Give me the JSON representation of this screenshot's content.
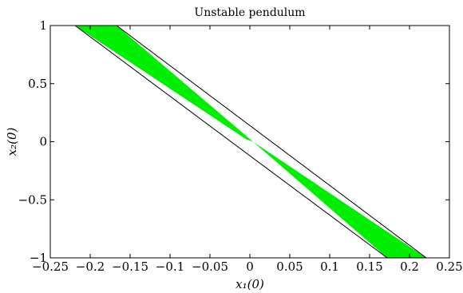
{
  "chart_data": {
    "type": "area",
    "title": "Unstable pendulum",
    "xlabel": "x₁(0)",
    "ylabel": "x₂(0)",
    "xlim": [
      -0.25,
      0.25
    ],
    "ylim": [
      -1,
      1
    ],
    "xticks": [
      -0.25,
      -0.2,
      -0.15,
      -0.1,
      -0.05,
      0,
      0.05,
      0.1,
      0.15,
      0.2,
      0.25
    ],
    "xtick_labels": [
      "−0.25",
      "−0.2",
      "−0.15",
      "−0.1",
      "−0.05",
      "0",
      "0.05",
      "0.1",
      "0.15",
      "0.2",
      "0.25"
    ],
    "yticks": [
      -1,
      -0.5,
      0,
      0.5,
      1
    ],
    "ytick_labels": [
      "−1",
      "−0.5",
      "0",
      "0.5",
      "1"
    ],
    "grid": false,
    "fill_color": "#00ee00",
    "edge_color": "#000000",
    "regions": [
      {
        "polygon": [
          [
            -0.219,
            1
          ],
          [
            -0.167,
            1
          ],
          [
            0.004,
            0
          ],
          [
            -0.005,
            0.022
          ],
          [
            -0.219,
            1
          ]
        ]
      },
      {
        "polygon": [
          [
            0.004,
            0
          ],
          [
            0.221,
            -1
          ],
          [
            0.172,
            -1
          ],
          [
            0.004,
            0
          ]
        ]
      }
    ],
    "boundary_lines": [
      {
        "points": [
          [
            -0.219,
            1
          ],
          [
            0.172,
            -1
          ]
        ]
      },
      {
        "points": [
          [
            -0.167,
            1
          ],
          [
            0.221,
            -1
          ]
        ]
      }
    ]
  }
}
